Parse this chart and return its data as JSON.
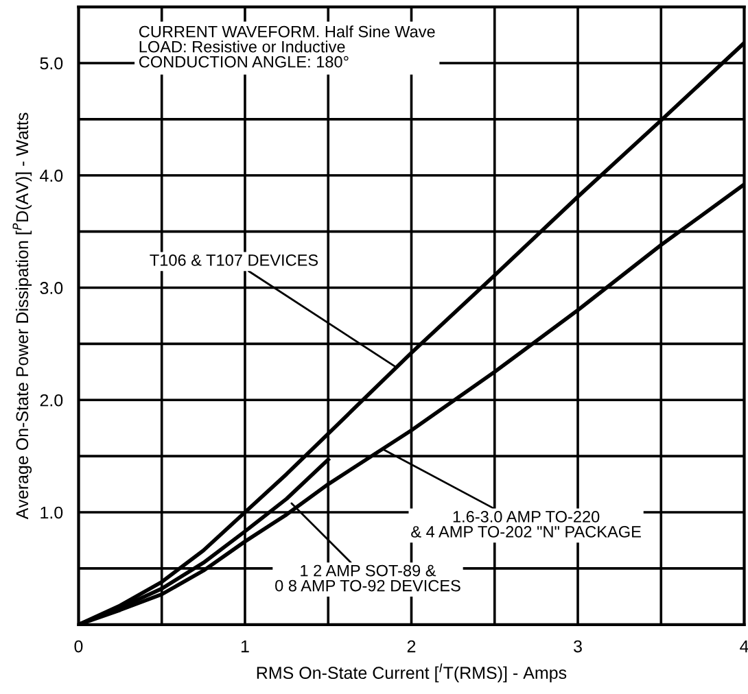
{
  "chart_data": {
    "type": "line",
    "xlabel": "RMS On-State Current [$^{I}$T(RMS)] - Amps",
    "ylabel": "Average On-State Power Dissipation [$^{P}$D(AV)] - Watts",
    "series": [
      {
        "color": "#000000",
        "x": [
          0,
          0.25,
          0.5,
          0.75,
          1,
          1.25,
          1.5,
          2,
          2.5,
          3,
          3.5,
          4
        ],
        "values": [
          0,
          0.17,
          0.38,
          0.66,
          1.0,
          1.34,
          1.7,
          2.42,
          3.11,
          3.81,
          4.49,
          5.18
        ]
      },
      {
        "color": "#000000",
        "x": [
          0,
          0.25,
          0.5,
          0.75,
          1,
          1.25,
          1.5
        ],
        "values": [
          0,
          0.15,
          0.32,
          0.55,
          0.83,
          1.12,
          1.47
        ]
      },
      {
        "color": "#000000",
        "x": [
          0,
          0.25,
          0.5,
          0.75,
          1,
          1.25,
          1.5,
          2,
          2.5,
          3,
          3.5,
          4
        ],
        "values": [
          0,
          0.13,
          0.27,
          0.48,
          0.74,
          0.98,
          1.25,
          1.73,
          2.25,
          2.8,
          3.38,
          3.92
        ]
      }
    ],
    "xlim": [
      0,
      4
    ],
    "ylim": [
      0,
      5.5
    ],
    "xticks": [
      0,
      {
        "value": 0.5,
        "label": null
      },
      1,
      {
        "value": 1.5,
        "label": null
      },
      2,
      {
        "value": 2.5,
        "label": null
      },
      3,
      {
        "value": 3.5,
        "label": null
      },
      4
    ],
    "yticks": [
      {
        "value": 0.5,
        "label": null
      },
      {
        "value": 1.0,
        "label": "1.0"
      },
      {
        "value": 1.5,
        "label": null
      },
      {
        "value": 2.0,
        "label": "2.0"
      },
      {
        "value": 2.5,
        "label": null
      },
      {
        "value": 3.0,
        "label": "3.0"
      },
      {
        "value": 3.5,
        "label": null
      },
      {
        "value": 4.0,
        "label": "4.0"
      },
      {
        "value": 4.5,
        "label": null
      },
      {
        "value": 5.0,
        "label": "5.0"
      }
    ],
    "grid": true,
    "marker": "none",
    "line_style": "solid",
    "annotations": [
      "CURRENT WAVEFORM. Half Sine Wave\nLOAD: Resistive or Inductive\nCONDUCTION ANGLE: 180°",
      {
        "text": "T106 & T107 DEVICES",
        "x": 1.9,
        "y": 2.3
      },
      {
        "text": "1.6-3.0 AMP TO-220\n& 4 AMP TO-202 \"N\" PACKAGE",
        "x": 1.83,
        "y": 1.56
      },
      {
        "text": "1 2 AMP SOT-89 &\n0 8 AMP TO-92 DEVICES",
        "x": 1.28,
        "y": 1.08
      }
    ]
  }
}
